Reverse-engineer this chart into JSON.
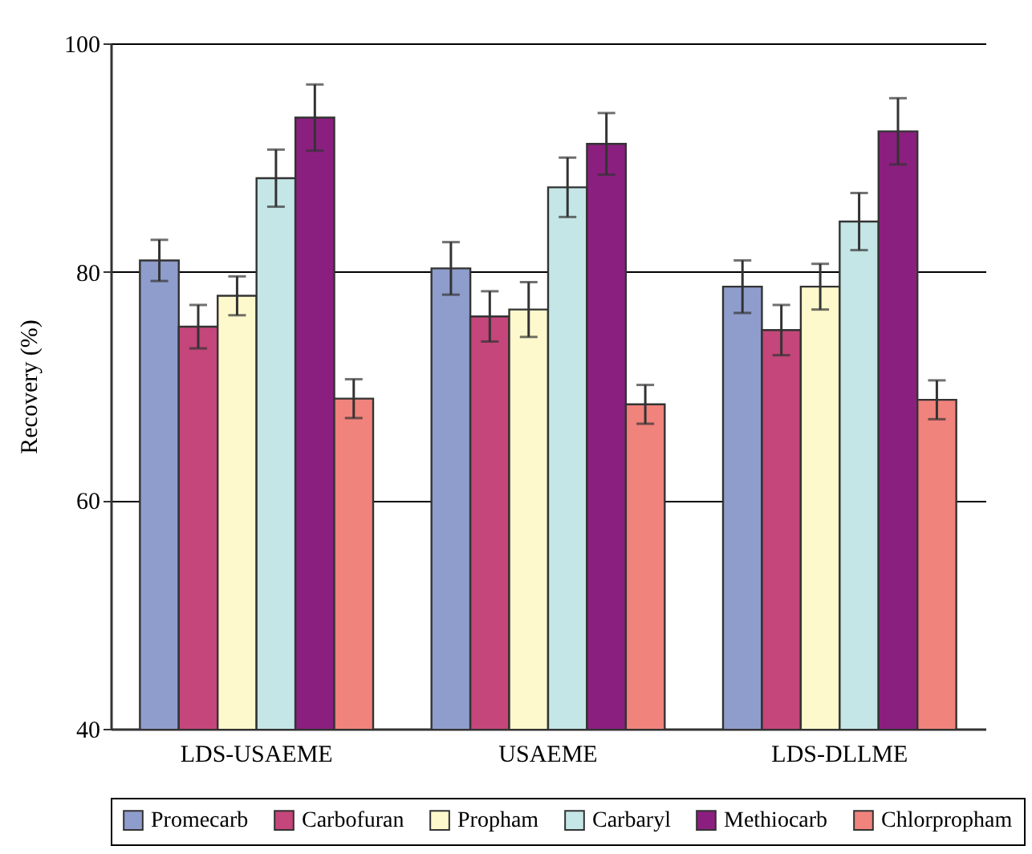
{
  "chart_data": {
    "type": "bar",
    "ylabel": "Recovery (%)",
    "categories": [
      "LDS-USAEME",
      "USAEME",
      "LDS-DLLME"
    ],
    "series": [
      {
        "name": "Promecarb",
        "color": "#8f9dcc",
        "values": [
          81.0,
          80.3,
          78.7
        ],
        "errors": [
          1.8,
          2.3,
          2.3
        ]
      },
      {
        "name": "Carbofuran",
        "color": "#c4467a",
        "values": [
          75.2,
          76.1,
          74.9
        ],
        "errors": [
          1.9,
          2.2,
          2.2
        ]
      },
      {
        "name": "Propham",
        "color": "#fdf9cc",
        "values": [
          77.9,
          76.7,
          78.7
        ],
        "errors": [
          1.7,
          2.4,
          2.0
        ]
      },
      {
        "name": "Carbaryl",
        "color": "#c5e6e6",
        "values": [
          88.2,
          87.4,
          84.4
        ],
        "errors": [
          2.5,
          2.6,
          2.5
        ]
      },
      {
        "name": "Methiocarb",
        "color": "#8b1f7f",
        "values": [
          93.5,
          91.2,
          92.3
        ],
        "errors": [
          2.9,
          2.7,
          2.9
        ]
      },
      {
        "name": "Chlorpropham",
        "color": "#f0837c",
        "values": [
          68.9,
          68.4,
          68.8
        ],
        "errors": [
          1.7,
          1.7,
          1.7
        ]
      }
    ],
    "ylim": [
      40,
      100
    ],
    "yticks": [
      40,
      60,
      80,
      100
    ],
    "grid": "y",
    "legend": "bottom"
  }
}
